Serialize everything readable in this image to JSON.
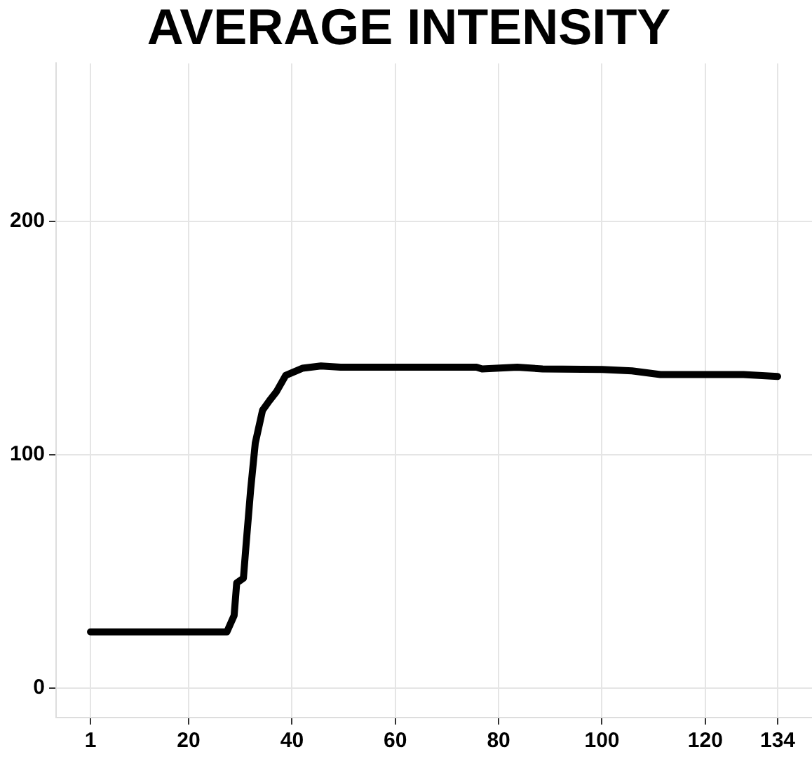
{
  "chart_data": {
    "type": "line",
    "title": "AVERAGE INTENSITY",
    "x": [
      1,
      27.4,
      28.8,
      29.3,
      30.6,
      31.1,
      32,
      32.9,
      34.3,
      35.6,
      37,
      38.8,
      42,
      45.6,
      49.4,
      75.7,
      76.8,
      83.6,
      88.5,
      100,
      105.8,
      111.3,
      127.4,
      134
    ],
    "series": [
      {
        "color": "#000000",
        "values": [
          24,
          24,
          31,
          45,
          47,
          61,
          85,
          105,
          119,
          123,
          127,
          134,
          137,
          138,
          137.5,
          137.5,
          136.7,
          137.5,
          136.7,
          136.5,
          135.9,
          134.3,
          134.3,
          133.5
        ]
      }
    ],
    "xlim": [
      -5.65,
      140.65
    ],
    "ylim": [
      -12.75,
      267.75
    ],
    "xticks": [
      1,
      20,
      40,
      60,
      80,
      100,
      120,
      134
    ],
    "yticks": [
      0,
      100,
      200
    ],
    "grid": true,
    "legend": false,
    "marker": "none",
    "line_style": "solid"
  }
}
